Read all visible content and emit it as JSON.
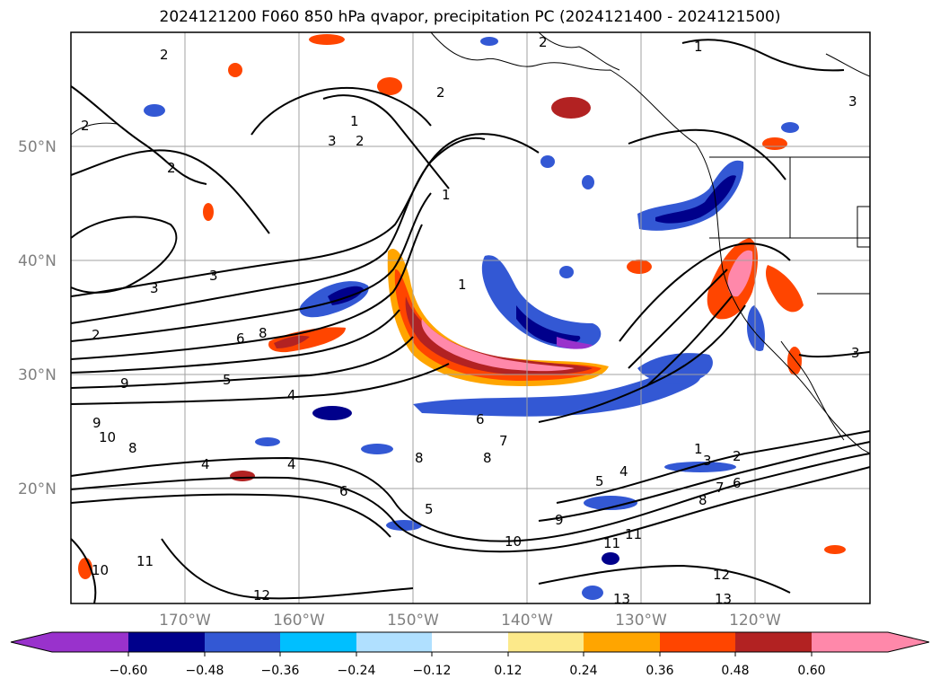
{
  "title": "2024121200 F060 850 hPa qvapor, precipitation PC (2024121400 - 2024121500)",
  "lat_labels": [
    "50°N",
    "40°N",
    "30°N",
    "20°N"
  ],
  "lon_labels": [
    "170°W",
    "160°W",
    "150°W",
    "140°W",
    "130°W",
    "120°W"
  ],
  "colorbar": {
    "colors": [
      "#9932cc",
      "#00008b",
      "#3358d4",
      "#00bfff",
      "#b0e0ff",
      "#ffffff",
      "#fce98a",
      "#ffa500",
      "#ff4500",
      "#b22222",
      "#ff88aa"
    ],
    "tick_labels": [
      "−0.60",
      "−0.48",
      "−0.36",
      "−0.24",
      "−0.12",
      "0.12",
      "0.24",
      "0.36",
      "0.48",
      "0.60"
    ]
  },
  "contour_labels": [
    "1",
    "2",
    "3",
    "2",
    "1",
    "2",
    "2",
    "3",
    "3",
    "2",
    "1",
    "1",
    "2",
    "3",
    "6",
    "8",
    "9",
    "9",
    "10",
    "8",
    "4",
    "4",
    "5",
    "6",
    "4",
    "6",
    "5",
    "8",
    "7",
    "8",
    "5",
    "9",
    "10",
    "11",
    "11",
    "12",
    "13",
    "13",
    "12",
    "8",
    "6",
    "3",
    "2",
    "1",
    "10",
    "3",
    "2",
    "4",
    "7",
    "11"
  ]
}
